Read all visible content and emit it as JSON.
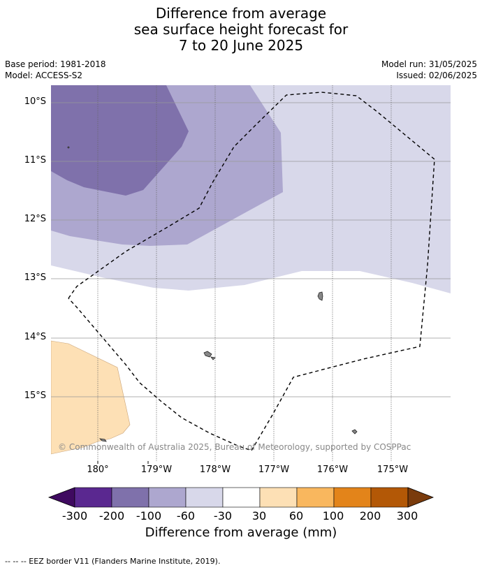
{
  "title": {
    "line1": "Difference from average",
    "line2": "sea surface height forecast for",
    "line3": "7 to 20 June 2025"
  },
  "meta_left": {
    "base_period": "Base period: 1981-2018",
    "model": "Model: ACCESS-S2"
  },
  "meta_right": {
    "model_run": "Model run: 31/05/2025",
    "issued": "Issued: 02/06/2025"
  },
  "map": {
    "lat_labels": [
      "10°S",
      "11°S",
      "12°S",
      "13°S",
      "14°S",
      "15°S"
    ],
    "lon_labels": [
      "180°",
      "179°W",
      "178°W",
      "177°W",
      "176°W",
      "175°W"
    ],
    "copyright": "© Commonwealth of Australia 2025, Bureau of Meteorology, supported by COSPPac"
  },
  "colorbar": {
    "title": "Difference from average (mm)",
    "ticks": [
      "-300",
      "-200",
      "-100",
      "-60",
      "-30",
      "30",
      "60",
      "100",
      "200",
      "300"
    ],
    "colors": [
      "#3f0a60",
      "#5a2890",
      "#7f71ab",
      "#ada7cf",
      "#d8d8ea",
      "#ffffff",
      "#fde0b5",
      "#f9b75e",
      "#e3841a",
      "#b35806",
      "#7a3b0c"
    ]
  },
  "footer": {
    "legend": "--  --  -- EEZ border V11 (Flanders Marine Institute, 2019)."
  }
}
